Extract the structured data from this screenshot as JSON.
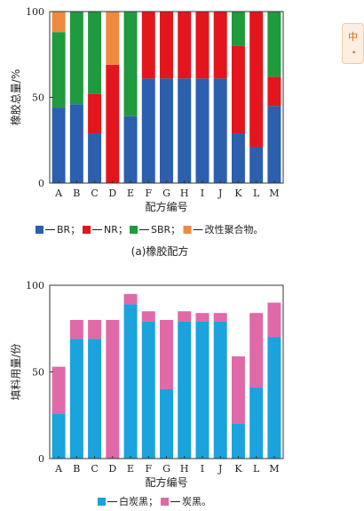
{
  "colors": {
    "br": "#2c5fae",
    "nr": "#e3161d",
    "sbr": "#1f9a3e",
    "mod": "#ee8a3f",
    "white_black": "#1aa3dc",
    "carbon_black": "#e06aa8",
    "axis": "#333333"
  },
  "side_badge": {
    "text": "中",
    "icon": "dot-icon"
  },
  "chart_data": [
    {
      "type": "bar",
      "stacked": true,
      "categories": [
        "A",
        "B",
        "C",
        "D",
        "E",
        "F",
        "G",
        "H",
        "I",
        "J",
        "K",
        "L",
        "M"
      ],
      "series": [
        {
          "name": "BR",
          "color_key": "br",
          "values": [
            44,
            46,
            29,
            0,
            39,
            61,
            61,
            61,
            61,
            61,
            29,
            21,
            45
          ]
        },
        {
          "name": "NR",
          "color_key": "nr",
          "values": [
            0,
            0,
            23,
            69,
            0,
            39,
            39,
            39,
            39,
            39,
            51,
            79,
            17
          ]
        },
        {
          "name": "SBR",
          "color_key": "sbr",
          "values": [
            44,
            54,
            48,
            0,
            61,
            0,
            0,
            0,
            0,
            0,
            20,
            0,
            38
          ]
        },
        {
          "name": "改性聚合物",
          "color_key": "mod",
          "values": [
            12,
            0,
            0,
            31,
            0,
            0,
            0,
            0,
            0,
            0,
            0,
            0,
            0
          ]
        }
      ],
      "ylim": [
        0,
        100
      ],
      "yticks": [
        "0",
        "50",
        "100"
      ],
      "ylabel": "橡胶总量/%",
      "xlabel": "配方编号",
      "legend_text": [
        "■—BR；",
        "■—NR；",
        "■—SBR；",
        "■—改性聚合物。"
      ],
      "legend_items": [
        {
          "name": "BR",
          "suffix": "；"
        },
        {
          "name": "NR",
          "suffix": "；"
        },
        {
          "name": "SBR",
          "suffix": "；"
        },
        {
          "name": "改性聚合物",
          "suffix": "。"
        }
      ],
      "caption": "(a)橡胶配方"
    },
    {
      "type": "bar",
      "stacked": true,
      "categories": [
        "A",
        "B",
        "C",
        "D",
        "E",
        "F",
        "G",
        "H",
        "I",
        "J",
        "K",
        "L",
        "M"
      ],
      "series": [
        {
          "name": "白炭黑",
          "color_key": "white_black",
          "values": [
            26,
            69,
            69,
            0,
            89,
            79,
            40,
            79,
            79,
            79,
            20,
            41,
            70
          ]
        },
        {
          "name": "炭黑",
          "color_key": "carbon_black",
          "values": [
            27,
            11,
            11,
            80,
            6,
            6,
            40,
            6,
            5,
            5,
            39,
            43,
            20
          ]
        }
      ],
      "ylim": [
        0,
        100
      ],
      "yticks": [
        "0",
        "50",
        "100"
      ],
      "ylabel": "填料用量/份",
      "xlabel": "配方编号",
      "legend_items": [
        {
          "name": "白炭黑",
          "suffix": "；"
        },
        {
          "name": "炭黑",
          "suffix": "。"
        }
      ]
    }
  ]
}
